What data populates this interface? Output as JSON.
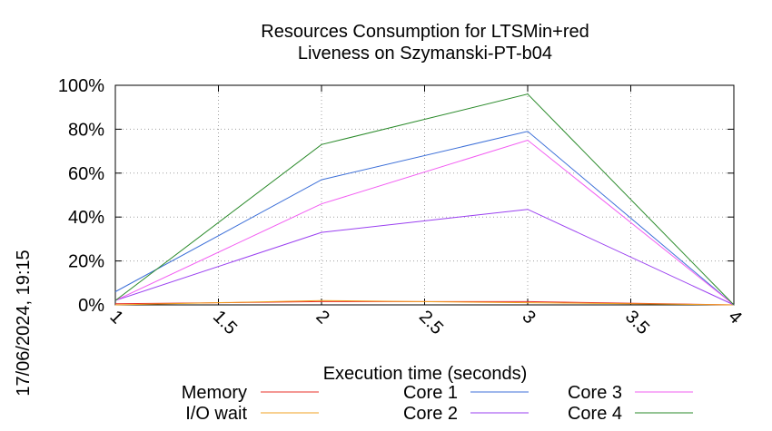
{
  "chart_data": {
    "type": "line",
    "title_line1": "Resources Consumption for LTSMin+red",
    "title_line2": "Liveness on Szymanski-PT-b04",
    "xlabel": "Execution time (seconds)",
    "ylabel": "",
    "side_label": "17/06/2024, 19:15",
    "x": [
      1,
      2,
      3,
      4
    ],
    "xlim": [
      1,
      4
    ],
    "ylim": [
      0,
      100
    ],
    "x_ticks": [
      1,
      1.5,
      2,
      2.5,
      3,
      3.5,
      4
    ],
    "x_tick_labels": [
      "1",
      "1.5",
      "2",
      "2.5",
      "3",
      "3.5",
      "4"
    ],
    "y_ticks": [
      0,
      20,
      40,
      60,
      80,
      100
    ],
    "y_tick_labels": [
      "0%",
      "20%",
      "40%",
      "60%",
      "80%",
      "100%"
    ],
    "grid": true,
    "legend_position": "bottom",
    "series": [
      {
        "name": "Memory",
        "color": "#e8312a",
        "values": [
          0.5,
          1.5,
          1.5,
          0
        ]
      },
      {
        "name": "I/O wait",
        "color": "#f0a020",
        "values": [
          0,
          2,
          1,
          0
        ]
      },
      {
        "name": "Core 1",
        "color": "#3c6fd8",
        "values": [
          6,
          57,
          79,
          0
        ]
      },
      {
        "name": "Core 2",
        "color": "#9a3ff0",
        "values": [
          2,
          33,
          43.5,
          0
        ]
      },
      {
        "name": "Core 3",
        "color": "#f25cf2",
        "values": [
          2,
          46,
          75,
          0
        ]
      },
      {
        "name": "Core 4",
        "color": "#2a8a2a",
        "values": [
          2,
          73,
          96,
          0
        ]
      }
    ]
  }
}
